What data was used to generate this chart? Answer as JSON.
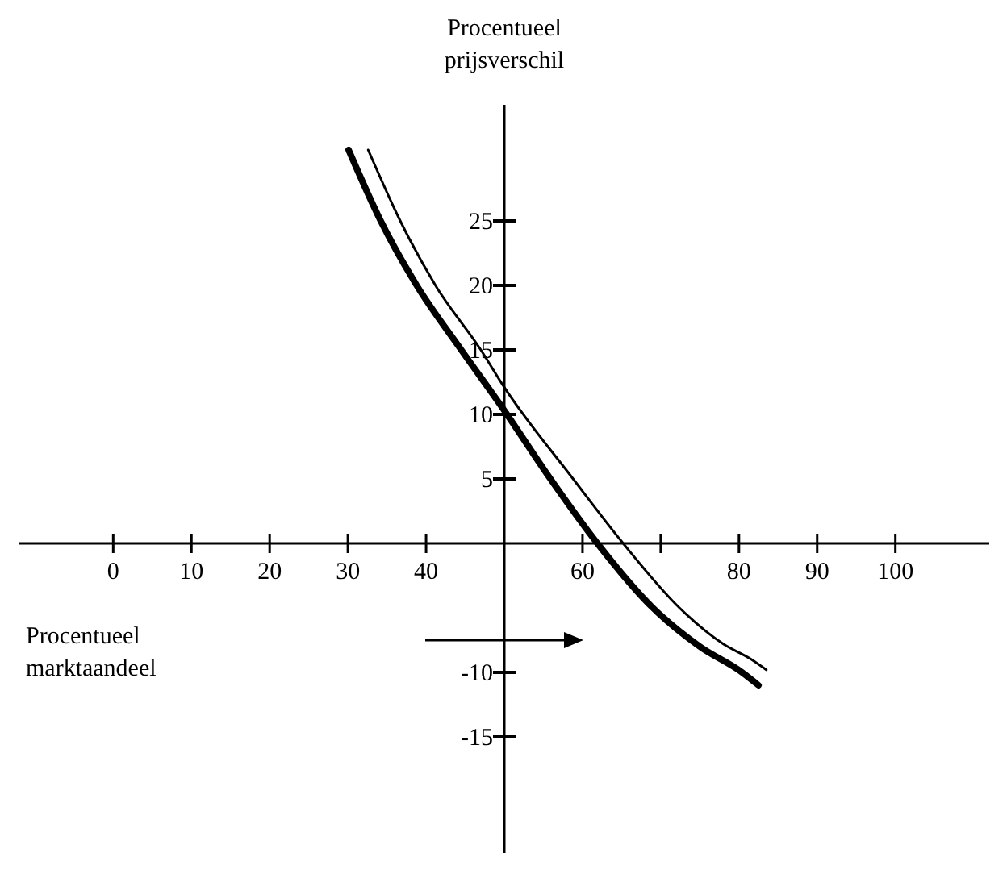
{
  "chart_data": {
    "type": "line",
    "xlabel": "Procentueel marktaandeel",
    "ylabel": "Procentueel prijsverschil",
    "xlim": [
      -12,
      112
    ],
    "ylim": [
      -24,
      34
    ],
    "xticks": [
      0,
      10,
      20,
      30,
      40,
      60,
      {
        "value": 70,
        "label": null
      },
      80,
      90,
      100
    ],
    "yticks": [
      {
        "value": -15,
        "label": "-15"
      },
      {
        "value": -10,
        "label": "-10"
      },
      5,
      10,
      15,
      20,
      25
    ],
    "marker": "none",
    "line_style": "solid",
    "series": [
      {
        "color": "#000000",
        "x": [
          30.1,
          34.2,
          38.8,
          44.5,
          50,
          55.9,
          61.9,
          69,
          75,
          80.4,
          82.5
        ],
        "values": [
          30.5,
          25,
          20,
          15,
          10.3,
          5,
          0,
          -5,
          -8,
          -10,
          -11
        ]
      },
      {
        "color": "#000000",
        "x": [
          32.6,
          36.7,
          41.2,
          47,
          50,
          58.8,
          65.2,
          72.4,
          78,
          81.6,
          83.5
        ],
        "values": [
          30.5,
          25,
          20,
          15,
          12.1,
          5,
          0,
          -5,
          -7.8,
          -9,
          -9.8
        ]
      }
    ]
  }
}
